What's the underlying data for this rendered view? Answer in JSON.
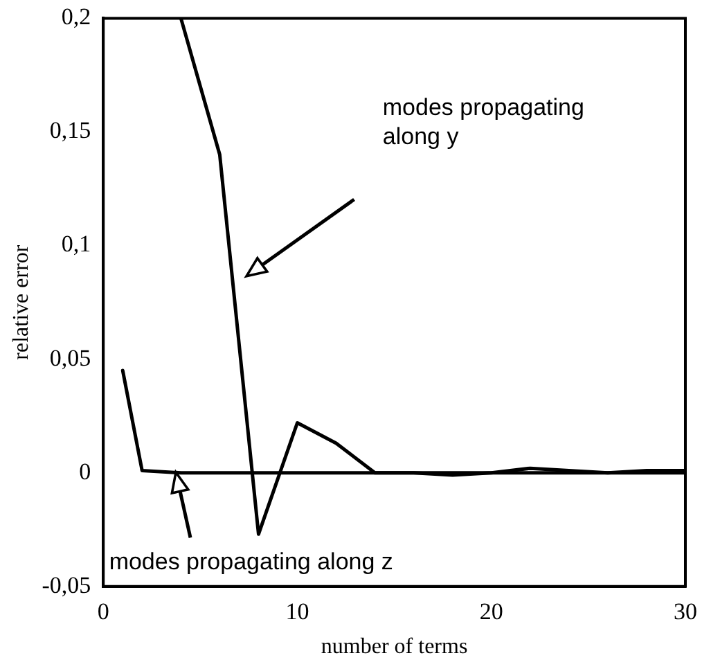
{
  "chart_data": {
    "type": "line",
    "xlabel": "number of terms",
    "ylabel": "relative error",
    "xlim": [
      0,
      30
    ],
    "xticks": [
      0,
      10,
      20,
      30
    ],
    "ylim": [
      -0.05,
      0.2
    ],
    "yticks": [
      {
        "value": -0.05,
        "label": "-0,05"
      },
      {
        "value": 0,
        "label": "0"
      },
      {
        "value": 0.05,
        "label": "0,05"
      },
      {
        "value": 0.1,
        "label": "0,1"
      },
      {
        "value": 0.15,
        "label": "0,15"
      },
      {
        "value": 0.2,
        "label": "0,2"
      }
    ],
    "grid": false,
    "legend": false,
    "marker": "none",
    "line_style": "solid",
    "series": [
      {
        "color": "#000000",
        "x": [
          4,
          6,
          8,
          10,
          12,
          14,
          16,
          18,
          20,
          22,
          24,
          26,
          28,
          30
        ],
        "values": [
          0.2,
          0.14,
          -0.027,
          0.022,
          0.013,
          0,
          0,
          -0.001,
          0,
          0.002,
          0.001,
          0,
          0.001,
          0.001
        ]
      },
      {
        "color": "#000000",
        "x": [
          1,
          2,
          4,
          6,
          8,
          10,
          12,
          14,
          16,
          18,
          20,
          22,
          24,
          26,
          28,
          30
        ],
        "values": [
          0.045,
          0.001,
          0,
          0,
          0,
          0,
          0,
          0,
          0,
          0,
          0,
          0,
          0,
          0,
          0,
          0
        ]
      }
    ],
    "annotations": [
      "modes propagating along y",
      "modes propagating along z"
    ]
  }
}
